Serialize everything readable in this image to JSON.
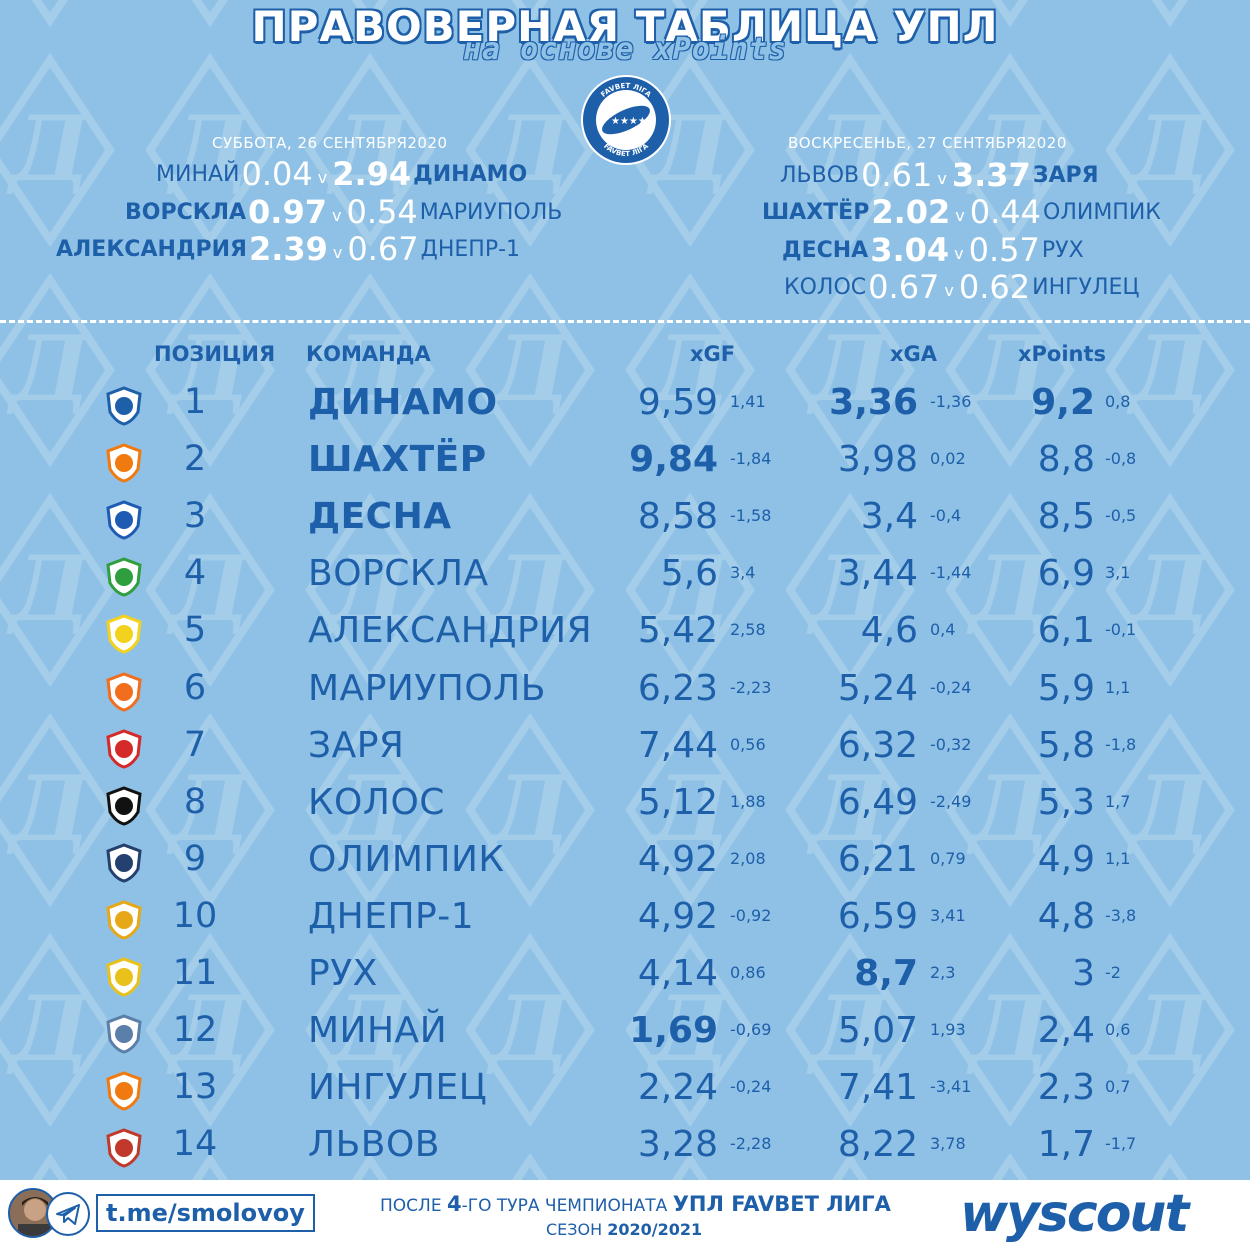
{
  "header": {
    "title": "ПРАВОВЕРНАЯ ТАБЛИЦА УПЛ",
    "subtitle": "на основе xPoints",
    "league_logo_text_top": "FAVBET ЛІГА",
    "league_logo_text_bottom": "FAVBET ЛІГА"
  },
  "saturday": {
    "date": "СУББОТА, 26 СЕНТЯБРЯ2020",
    "matches": [
      {
        "home": "МИНАЙ",
        "home_xg": "0.04",
        "v": "v",
        "away_xg": "2.94",
        "away": "ДИНАМО"
      },
      {
        "home": "ВОРСКЛА",
        "home_xg": "0.97",
        "v": "v",
        "away_xg": "0.54",
        "away": "МАРИУПОЛЬ"
      },
      {
        "home": "АЛЕКСАНДРИЯ",
        "home_xg": "2.39",
        "v": "v",
        "away_xg": "0.67",
        "away": "ДНЕПР-1"
      }
    ]
  },
  "sunday": {
    "date": "ВОСКРЕСЕНЬЕ, 27 СЕНТЯБРЯ2020",
    "matches": [
      {
        "home": "ЛЬВОВ",
        "home_xg": "0.61",
        "v": "v",
        "away_xg": "3.37",
        "away": "ЗАРЯ"
      },
      {
        "home": "ШАХТЁР",
        "home_xg": "2.02",
        "v": "v",
        "away_xg": "0.44",
        "away": "ОЛИМПИК"
      },
      {
        "home": "ДЕСНА",
        "home_xg": "3.04",
        "v": "v",
        "away_xg": "0.57",
        "away": "РУХ"
      },
      {
        "home": "КОЛОС",
        "home_xg": "0.67",
        "v": "v",
        "away_xg": "0.62",
        "away": "ИНГУЛЕЦ"
      }
    ]
  },
  "table": {
    "columns": {
      "position": "ПОЗИЦИЯ",
      "team": "КОМАНДА",
      "xgf": "xGF",
      "xga": "xGA",
      "xpoints": "xPoints"
    },
    "rows": [
      {
        "pos": "1",
        "team": "ДИНАМО",
        "xgf": "9,59",
        "xgf_diff": "1,41",
        "xga": "3,36",
        "xga_diff": "-1,36",
        "xpts": "9,2",
        "xpts_diff": "0,8",
        "logo_color": "#1e5fa9",
        "logo_icon": "dynamo-icon"
      },
      {
        "pos": "2",
        "team": "ШАХТЁР",
        "xgf": "9,84",
        "xgf_diff": "-1,84",
        "xga": "3,98",
        "xga_diff": "0,02",
        "xpts": "8,8",
        "xpts_diff": "-0,8",
        "logo_color": "#f07a10",
        "logo_icon": "shakhtar-icon"
      },
      {
        "pos": "3",
        "team": "ДЕСНА",
        "xgf": "8,58",
        "xgf_diff": "-1,58",
        "xga": "3,4",
        "xga_diff": "-0,4",
        "xpts": "8,5",
        "xpts_diff": "-0,5",
        "logo_color": "#1f5bb3",
        "logo_icon": "desna-icon"
      },
      {
        "pos": "4",
        "team": "ВОРСКЛА",
        "xgf": "5,6",
        "xgf_diff": "3,4",
        "xga": "3,44",
        "xga_diff": "-1,44",
        "xpts": "6,9",
        "xpts_diff": "3,1",
        "logo_color": "#2e9e3e",
        "logo_icon": "vorskla-icon"
      },
      {
        "pos": "5",
        "team": "АЛЕКСАНДРИЯ",
        "xgf": "5,42",
        "xgf_diff": "2,58",
        "xga": "4,6",
        "xga_diff": "0,4",
        "xpts": "6,1",
        "xpts_diff": "-0,1",
        "logo_color": "#f2d21c",
        "logo_icon": "oleksandriya-icon"
      },
      {
        "pos": "6",
        "team": "МАРИУПОЛЬ",
        "xgf": "6,23",
        "xgf_diff": "-2,23",
        "xga": "5,24",
        "xga_diff": "-0,24",
        "xpts": "5,9",
        "xpts_diff": "1,1",
        "logo_color": "#f06e1e",
        "logo_icon": "mariupol-icon"
      },
      {
        "pos": "7",
        "team": "ЗАРЯ",
        "xgf": "7,44",
        "xgf_diff": "0,56",
        "xga": "6,32",
        "xga_diff": "-0,32",
        "xpts": "5,8",
        "xpts_diff": "-1,8",
        "logo_color": "#d42a2a",
        "logo_icon": "zorya-icon"
      },
      {
        "pos": "8",
        "team": "КОЛОС",
        "xgf": "5,12",
        "xgf_diff": "1,88",
        "xga": "6,49",
        "xga_diff": "-2,49",
        "xpts": "5,3",
        "xpts_diff": "1,7",
        "logo_color": "#111111",
        "logo_icon": "kolos-icon"
      },
      {
        "pos": "9",
        "team": "ОЛИМПИК",
        "xgf": "4,92",
        "xgf_diff": "2,08",
        "xga": "6,21",
        "xga_diff": "0,79",
        "xpts": "4,9",
        "xpts_diff": "1,1",
        "logo_color": "#24406e",
        "logo_icon": "olimpik-icon"
      },
      {
        "pos": "10",
        "team": "ДНЕПР-1",
        "xgf": "4,92",
        "xgf_diff": "-0,92",
        "xga": "6,59",
        "xga_diff": "3,41",
        "xpts": "4,8",
        "xpts_diff": "-3,8",
        "logo_color": "#e6a817",
        "logo_icon": "dnipro-icon"
      },
      {
        "pos": "11",
        "team": "РУХ",
        "xgf": "4,14",
        "xgf_diff": "0,86",
        "xga": "8,7",
        "xga_diff": "2,3",
        "xpts": "3",
        "xpts_diff": "-2",
        "logo_color": "#e8c21a",
        "logo_icon": "rukh-icon"
      },
      {
        "pos": "12",
        "team": "МИНАЙ",
        "xgf": "1,69",
        "xgf_diff": "-0,69",
        "xga": "5,07",
        "xga_diff": "1,93",
        "xpts": "2,4",
        "xpts_diff": "0,6",
        "logo_color": "#5a7fa8",
        "logo_icon": "mynai-icon"
      },
      {
        "pos": "13",
        "team": "ИНГУЛЕЦ",
        "xgf": "2,24",
        "xgf_diff": "-0,24",
        "xga": "7,41",
        "xga_diff": "-3,41",
        "xpts": "2,3",
        "xpts_diff": "0,7",
        "logo_color": "#f07a10",
        "logo_icon": "inhulets-icon"
      },
      {
        "pos": "14",
        "team": "ЛЬВОВ",
        "xgf": "3,28",
        "xgf_diff": "-2,28",
        "xga": "8,22",
        "xga_diff": "3,78",
        "xpts": "1,7",
        "xpts_diff": "-1,7",
        "logo_color": "#c0392b",
        "logo_icon": "lviv-icon"
      }
    ]
  },
  "footer": {
    "telegram_link": "t.me/smolovoy",
    "line1_a": "ПОСЛЕ ",
    "line1_b": "4",
    "line1_c": "-ГО ТУРА ЧЕМПИОНАТА ",
    "line1_d": "УПЛ FAVBET ЛИГА",
    "line2_a": "СЕЗОН ",
    "line2_b": "2020/2021",
    "brand": "wyscout"
  },
  "colors": {
    "background": "#8ec1e5",
    "accent": "#1e5fa9",
    "white": "#ffffff"
  }
}
